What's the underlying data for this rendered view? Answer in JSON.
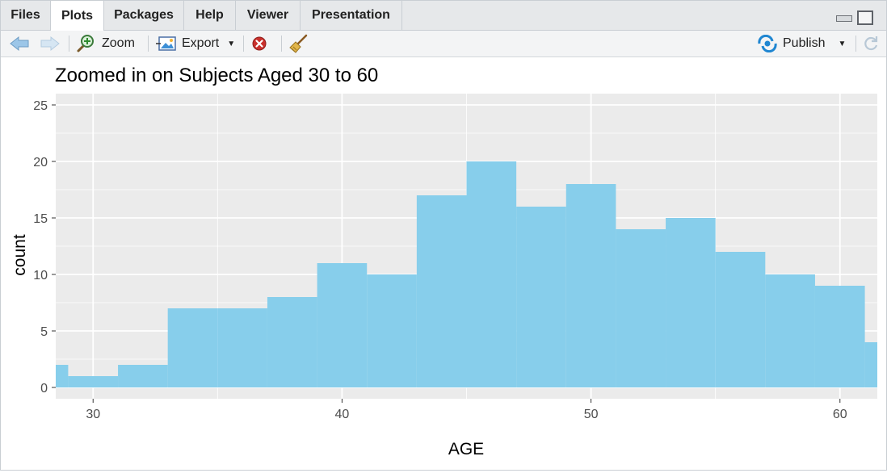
{
  "tabs": [
    "Files",
    "Plots",
    "Packages",
    "Help",
    "Viewer",
    "Presentation"
  ],
  "active_tab": "Plots",
  "toolbar": {
    "zoom_label": "Zoom",
    "export_label": "Export",
    "publish_label": "Publish"
  },
  "colors": {
    "bar_fill": "#87CEEB",
    "panel_bg": "#EBEBEB",
    "grid": "#FFFFFF"
  },
  "chart_data": {
    "type": "bar",
    "title": "Zoomed in on Subjects Aged 30 to 60",
    "xlabel": "AGE",
    "ylabel": "count",
    "bin_width": 2,
    "bins": [
      {
        "start": 27,
        "end": 29,
        "count": 2
      },
      {
        "start": 29,
        "end": 31,
        "count": 1
      },
      {
        "start": 31,
        "end": 33,
        "count": 2
      },
      {
        "start": 33,
        "end": 35,
        "count": 7
      },
      {
        "start": 35,
        "end": 37,
        "count": 7
      },
      {
        "start": 37,
        "end": 39,
        "count": 8
      },
      {
        "start": 39,
        "end": 41,
        "count": 11
      },
      {
        "start": 41,
        "end": 43,
        "count": 10
      },
      {
        "start": 43,
        "end": 45,
        "count": 17
      },
      {
        "start": 45,
        "end": 47,
        "count": 20
      },
      {
        "start": 47,
        "end": 49,
        "count": 16
      },
      {
        "start": 49,
        "end": 51,
        "count": 18
      },
      {
        "start": 51,
        "end": 53,
        "count": 14
      },
      {
        "start": 53,
        "end": 55,
        "count": 15
      },
      {
        "start": 55,
        "end": 57,
        "count": 12
      },
      {
        "start": 57,
        "end": 59,
        "count": 10
      },
      {
        "start": 59,
        "end": 61,
        "count": 9
      },
      {
        "start": 61,
        "end": 63,
        "count": 4
      }
    ],
    "xlim": [
      28.5,
      61.5
    ],
    "ylim": [
      -1,
      26
    ],
    "x_ticks": [
      30,
      40,
      50,
      60
    ],
    "y_ticks": [
      0,
      5,
      10,
      15,
      20,
      25
    ],
    "grid": true
  }
}
